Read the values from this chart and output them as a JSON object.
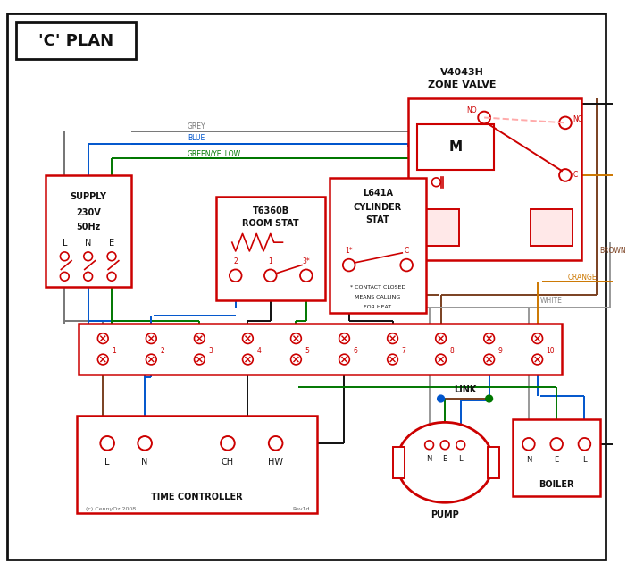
{
  "title": "'C' PLAN",
  "red": "#cc0000",
  "blue": "#0055cc",
  "green": "#007700",
  "grey": "#777777",
  "brown": "#7a4020",
  "orange": "#cc7700",
  "black": "#111111",
  "pink": "#ffaaaa",
  "white": "#ffffff",
  "zone_valve_title": [
    "V4043H",
    "ZONE VALVE"
  ],
  "room_stat_title": [
    "T6360B",
    "ROOM STAT"
  ],
  "cyl_stat_title": [
    "L641A",
    "CYLINDER",
    "STAT"
  ],
  "time_ctrl_label": "TIME CONTROLLER",
  "pump_label": "PUMP",
  "boiler_label": "BOILER",
  "link_label": "LINK",
  "tc_terminals": [
    "L",
    "N",
    "CH",
    "HW"
  ],
  "pump_nel": [
    "N",
    "E",
    "L"
  ],
  "boiler_nel": [
    "N",
    "E",
    "L"
  ],
  "copyright": "(c) CennyOz 2008",
  "rev": "Rev1d",
  "contact_note": "* CONTACT CLOSED\nMEANS CALLING\nFOR HEAT",
  "wire_labels": {
    "grey": "GREY",
    "blue": "BLUE",
    "green_yellow": "GREEN/YELLOW",
    "brown": "BROWN",
    "white": "WHITE",
    "orange": "ORANGE"
  }
}
